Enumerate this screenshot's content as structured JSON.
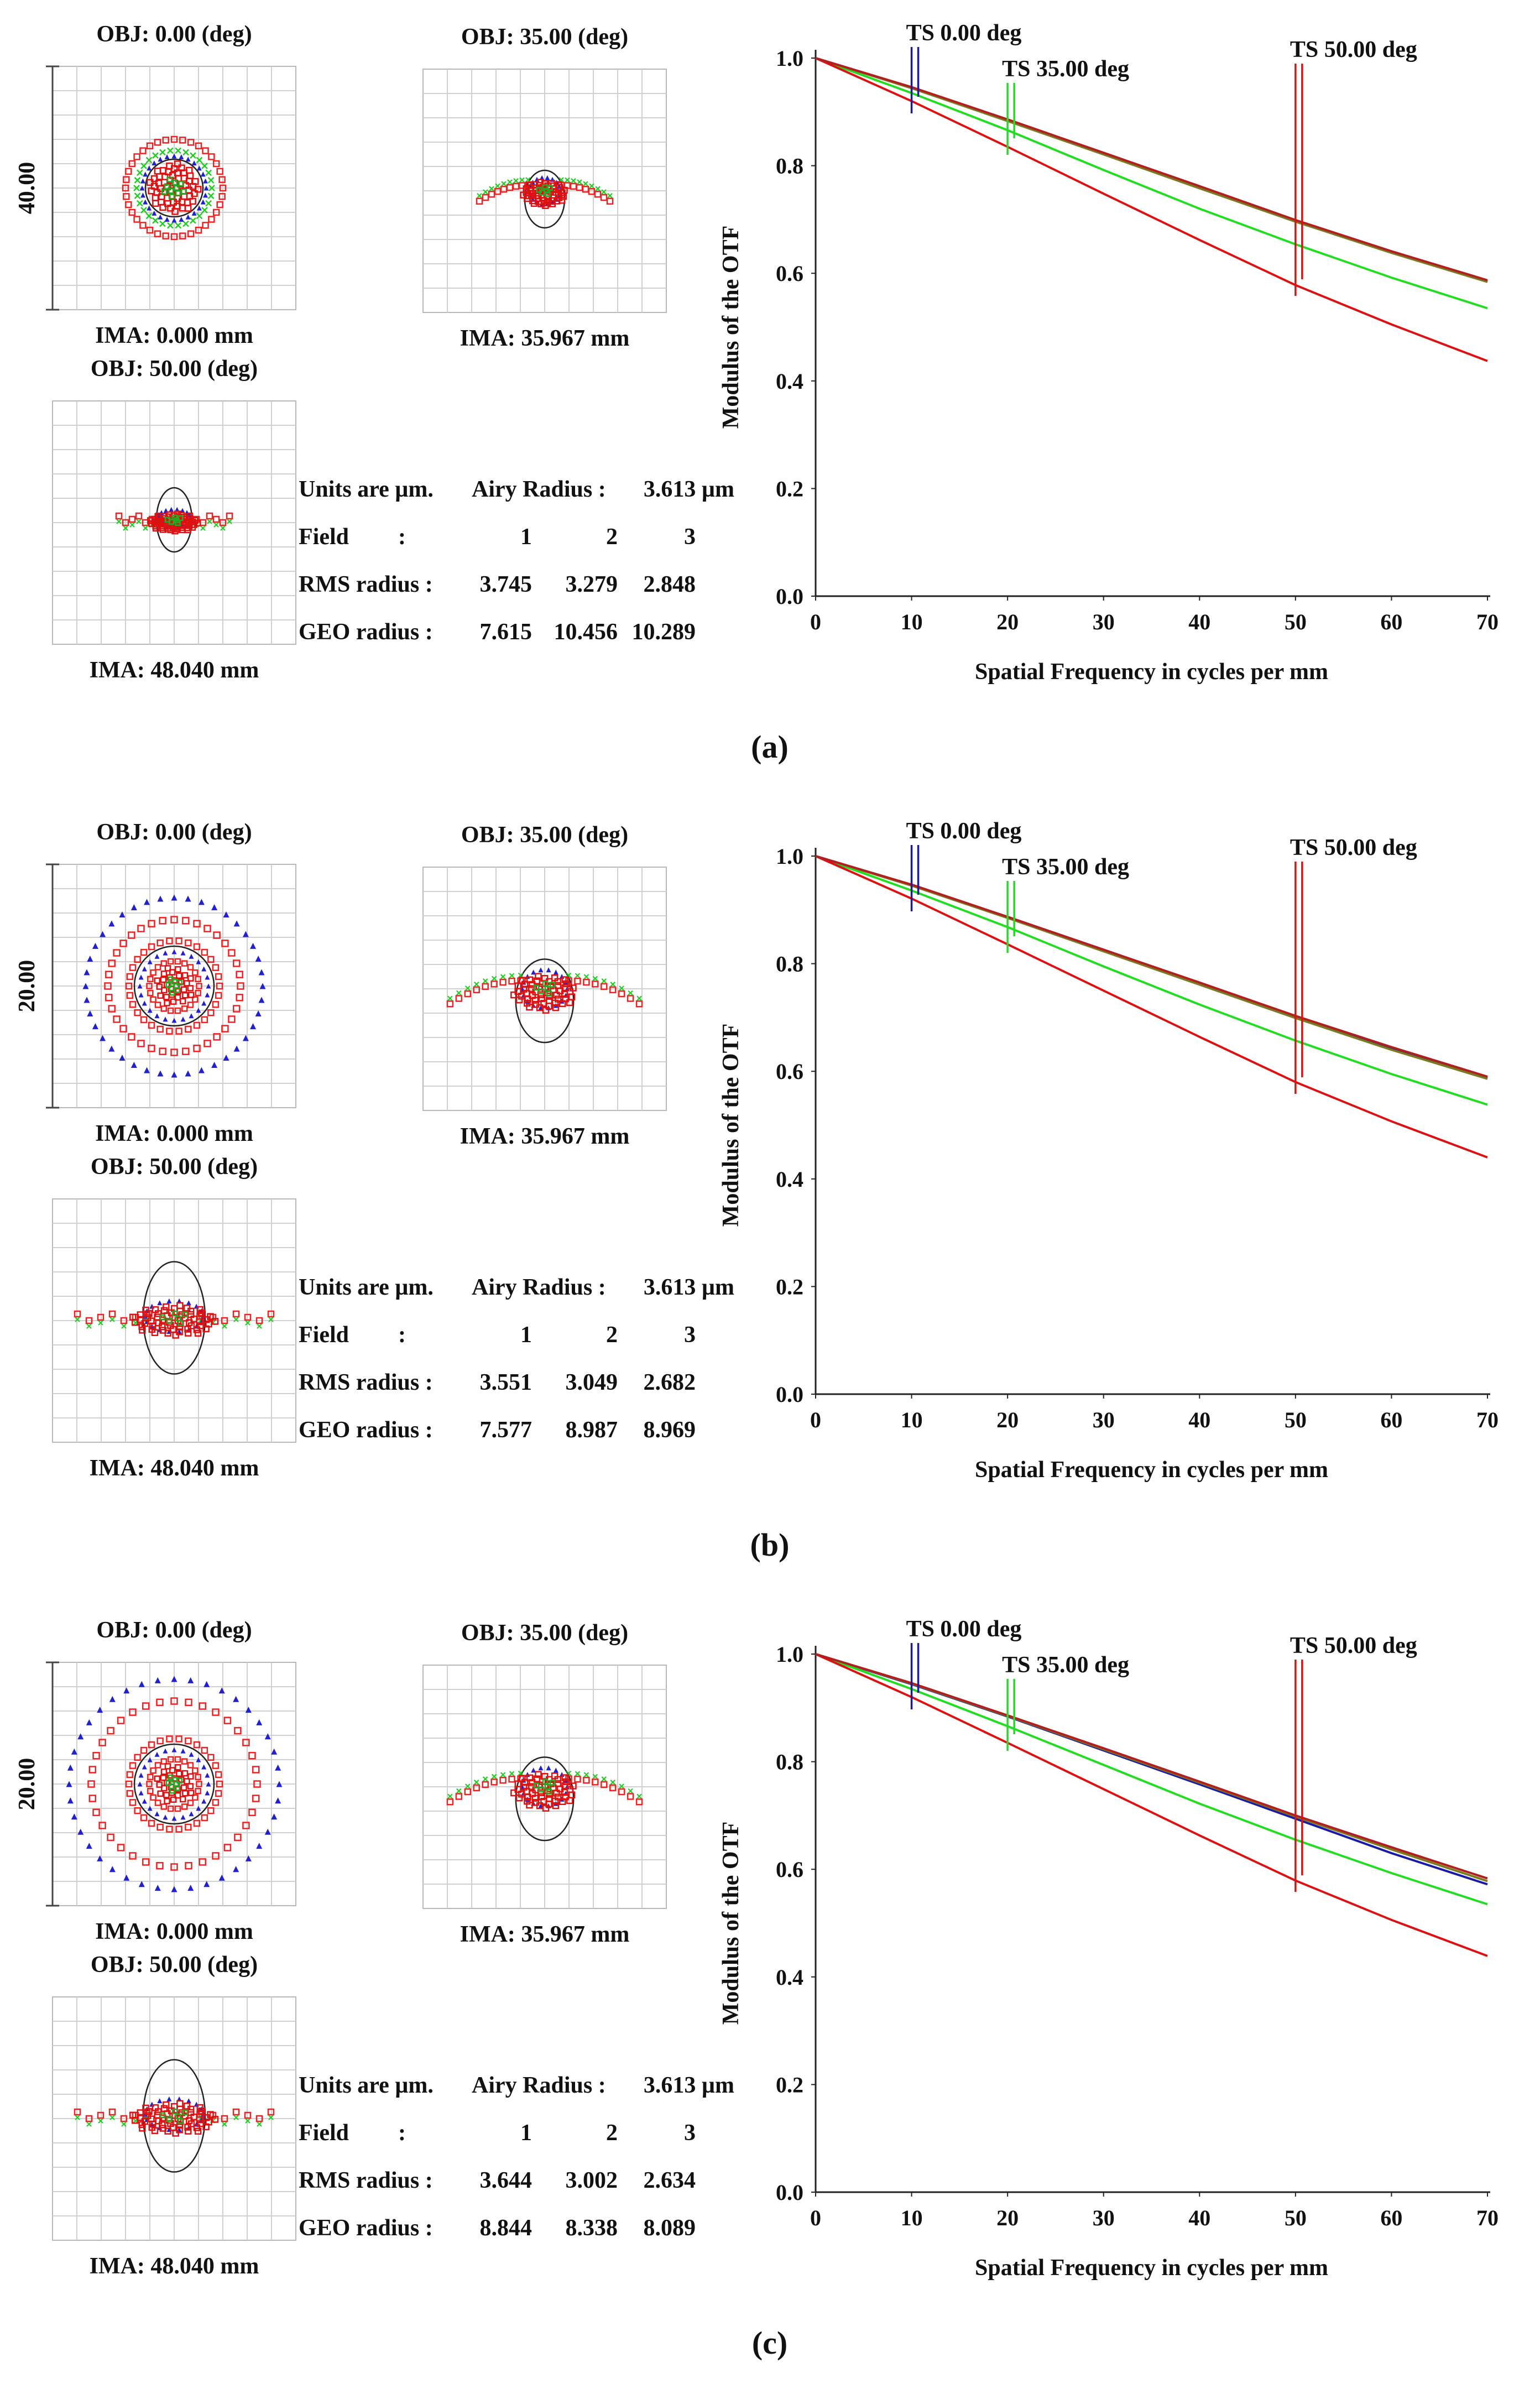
{
  "panels": [
    {
      "caption": "(a)",
      "spot": {
        "field_titles": [
          "OBJ: 0.00 (deg)",
          "OBJ: 35.00 (deg)",
          "OBJ: 50.00 (deg)"
        ],
        "image_labels": [
          "IMA: 0.000 mm",
          "IMA: 35.967 mm",
          "IMA: 48.040 mm"
        ],
        "scale_label": "40.00",
        "units_label": "Units are µm.",
        "airy_label": "Airy Radius :",
        "airy_value": "3.613 µm",
        "field_label": "Field",
        "field_colon": ":",
        "field_numbers": [
          "1",
          "2",
          "3"
        ],
        "rms_label": "RMS radius :",
        "rms_values": [
          "3.745",
          "3.279",
          "2.848"
        ],
        "geo_label": "GEO radius :",
        "geo_values": [
          "7.615",
          "10.456",
          "10.289"
        ]
      },
      "chart_data": {
        "type": "line",
        "title": "",
        "xlabel": "Spatial Frequency in cycles per mm",
        "ylabel": "Modulus of the OTF",
        "xlim": [
          0,
          70
        ],
        "ylim": [
          0,
          1
        ],
        "x_ticks": [
          "0",
          "10",
          "20",
          "30",
          "40",
          "50",
          "60",
          "70"
        ],
        "y_ticks": [
          "0.0",
          "0.2",
          "0.4",
          "0.6",
          "0.8",
          "1.0"
        ],
        "x": [
          0,
          10,
          20,
          30,
          40,
          50,
          60,
          70
        ],
        "series": [
          {
            "name": "TS 0.00 deg",
            "color": "#1a1aa8",
            "values": [
              1.0,
              0.945,
              0.885,
              0.823,
              0.761,
              0.698,
              0.64,
              0.585
            ]
          },
          {
            "name": "TS 35.00 deg (T)",
            "color": "#22dd22",
            "values": [
              1.0,
              0.935,
              0.866,
              0.792,
              0.72,
              0.654,
              0.592,
              0.535
            ]
          },
          {
            "name": "TS 35.00 deg (S)",
            "color": "#7a7a20",
            "values": [
              1.0,
              0.944,
              0.883,
              0.821,
              0.758,
              0.696,
              0.638,
              0.584
            ]
          },
          {
            "name": "TS 50.00 deg (T)",
            "color": "#dd1111",
            "values": [
              1.0,
              0.92,
              0.835,
              0.748,
              0.662,
              0.578,
              0.505,
              0.437
            ]
          },
          {
            "name": "TS 50.00 deg (S)",
            "color": "#b02020",
            "values": [
              1.0,
              0.946,
              0.886,
              0.824,
              0.762,
              0.699,
              0.641,
              0.587
            ]
          }
        ],
        "markers": [
          {
            "label": "TS 0.00 deg",
            "x": 10,
            "color": "#1a1aa8"
          },
          {
            "label": "TS 35.00 deg",
            "x": 20,
            "color": "#22dd22"
          },
          {
            "label": "TS 50.00 deg",
            "x": 50,
            "color": "#dd1111"
          }
        ]
      }
    },
    {
      "caption": "(b)",
      "spot": {
        "field_titles": [
          "OBJ: 0.00 (deg)",
          "OBJ: 35.00 (deg)",
          "OBJ: 50.00 (deg)"
        ],
        "image_labels": [
          "IMA: 0.000 mm",
          "IMA: 35.967 mm",
          "IMA: 48.040 mm"
        ],
        "scale_label": "20.00",
        "units_label": "Units are µm.",
        "airy_label": "Airy Radius :",
        "airy_value": "3.613 µm",
        "field_label": "Field",
        "field_colon": ":",
        "field_numbers": [
          "1",
          "2",
          "3"
        ],
        "rms_label": "RMS radius :",
        "rms_values": [
          "3.551",
          "3.049",
          "2.682"
        ],
        "geo_label": "GEO radius :",
        "geo_values": [
          "7.577",
          "8.987",
          "8.969"
        ]
      },
      "chart_data": {
        "type": "line",
        "title": "",
        "xlabel": "Spatial Frequency in cycles per mm",
        "ylabel": "Modulus of the OTF",
        "xlim": [
          0,
          70
        ],
        "ylim": [
          0,
          1
        ],
        "x_ticks": [
          "0",
          "10",
          "20",
          "30",
          "40",
          "50",
          "60",
          "70"
        ],
        "y_ticks": [
          "0.0",
          "0.2",
          "0.4",
          "0.6",
          "0.8",
          "1.0"
        ],
        "x": [
          0,
          10,
          20,
          30,
          40,
          50,
          60,
          70
        ],
        "series": [
          {
            "name": "TS 0.00 deg",
            "color": "#1a1aa8",
            "values": [
              1.0,
              0.946,
              0.887,
              0.826,
              0.764,
              0.702,
              0.643,
              0.588
            ]
          },
          {
            "name": "TS 35.00 deg (T)",
            "color": "#22dd22",
            "values": [
              1.0,
              0.936,
              0.868,
              0.795,
              0.724,
              0.657,
              0.595,
              0.538
            ]
          },
          {
            "name": "TS 35.00 deg (S)",
            "color": "#7a7a20",
            "values": [
              1.0,
              0.945,
              0.885,
              0.823,
              0.761,
              0.699,
              0.64,
              0.586
            ]
          },
          {
            "name": "TS 50.00 deg (T)",
            "color": "#dd1111",
            "values": [
              1.0,
              0.921,
              0.836,
              0.75,
              0.664,
              0.58,
              0.507,
              0.44
            ]
          },
          {
            "name": "TS 50.00 deg (S)",
            "color": "#b02020",
            "values": [
              1.0,
              0.947,
              0.887,
              0.826,
              0.765,
              0.703,
              0.645,
              0.59
            ]
          }
        ],
        "markers": [
          {
            "label": "TS 0.00 deg",
            "x": 10,
            "color": "#1a1aa8"
          },
          {
            "label": "TS 35.00 deg",
            "x": 20,
            "color": "#22dd22"
          },
          {
            "label": "TS 50.00 deg",
            "x": 50,
            "color": "#dd1111"
          }
        ]
      }
    },
    {
      "caption": "(c)",
      "spot": {
        "field_titles": [
          "OBJ: 0.00 (deg)",
          "OBJ: 35.00 (deg)",
          "OBJ: 50.00 (deg)"
        ],
        "image_labels": [
          "IMA: 0.000 mm",
          "IMA: 35.967 mm",
          "IMA: 48.040 mm"
        ],
        "scale_label": "20.00",
        "units_label": "Units are µm.",
        "airy_label": "Airy Radius :",
        "airy_value": "3.613 µm",
        "field_label": "Field",
        "field_colon": ":",
        "field_numbers": [
          "1",
          "2",
          "3"
        ],
        "rms_label": "RMS radius :",
        "rms_values": [
          "3.644",
          "3.002",
          "2.634"
        ],
        "geo_label": "GEO radius :",
        "geo_values": [
          "8.844",
          "8.338",
          "8.089"
        ]
      },
      "chart_data": {
        "type": "line",
        "title": "",
        "xlabel": "Spatial Frequency in cycles per mm",
        "ylabel": "Modulus of the OTF",
        "xlim": [
          0,
          70
        ],
        "ylim": [
          0,
          1
        ],
        "x_ticks": [
          "0",
          "10",
          "20",
          "30",
          "40",
          "50",
          "60",
          "70"
        ],
        "y_ticks": [
          "0.0",
          "0.2",
          "0.4",
          "0.6",
          "0.8",
          "1.0"
        ],
        "x": [
          0,
          10,
          20,
          30,
          40,
          50,
          60,
          70
        ],
        "series": [
          {
            "name": "TS 0.00 deg",
            "color": "#1a1aa8",
            "values": [
              1.0,
              0.944,
              0.884,
              0.821,
              0.758,
              0.694,
              0.63,
              0.572
            ]
          },
          {
            "name": "TS 35.00 deg (T)",
            "color": "#22dd22",
            "values": [
              1.0,
              0.935,
              0.866,
              0.794,
              0.722,
              0.655,
              0.593,
              0.535
            ]
          },
          {
            "name": "TS 35.00 deg (S)",
            "color": "#7a7a20",
            "values": [
              1.0,
              0.945,
              0.885,
              0.823,
              0.761,
              0.698,
              0.637,
              0.578
            ]
          },
          {
            "name": "TS 50.00 deg (T)",
            "color": "#dd1111",
            "values": [
              1.0,
              0.92,
              0.835,
              0.749,
              0.663,
              0.579,
              0.506,
              0.439
            ]
          },
          {
            "name": "TS 50.00 deg (S)",
            "color": "#b02020",
            "values": [
              1.0,
              0.946,
              0.886,
              0.825,
              0.763,
              0.7,
              0.641,
              0.583
            ]
          }
        ],
        "markers": [
          {
            "label": "TS 0.00 deg",
            "x": 10,
            "color": "#1a1aa8"
          },
          {
            "label": "TS 35.00 deg",
            "x": 20,
            "color": "#22dd22"
          },
          {
            "label": "TS 50.00 deg",
            "x": 50,
            "color": "#dd1111"
          }
        ]
      }
    }
  ]
}
